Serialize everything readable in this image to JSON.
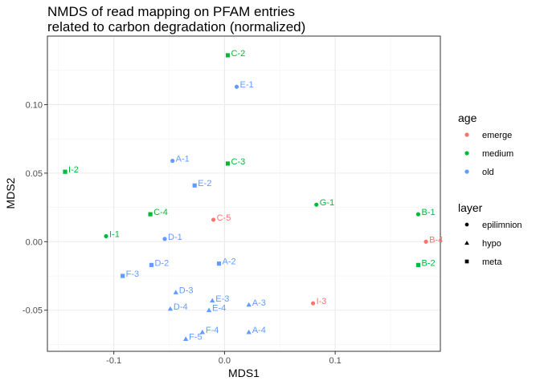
{
  "chart_data": {
    "type": "scatter",
    "title": [
      "NMDS of read mapping on PFAM entries",
      "related to carbon degradation (normalized)"
    ],
    "xlabel": "MDS1",
    "ylabel": "MDS2",
    "xlim": [
      -0.16,
      0.195
    ],
    "ylim": [
      -0.08,
      0.15
    ],
    "xticks": [
      -0.1,
      0.0,
      0.1
    ],
    "xtick_labels": [
      "-0.1",
      "0.0",
      "0.1"
    ],
    "yticks": [
      -0.05,
      0.0,
      0.05,
      0.1
    ],
    "ytick_labels": [
      "-0.05",
      "0.00",
      "0.05",
      "0.10"
    ],
    "grid": true,
    "legend_placement": "right",
    "colors": {
      "emerge": "#f8766d",
      "medium": "#00ba38",
      "old": "#619cff"
    },
    "legends": [
      {
        "title": "age",
        "items": [
          {
            "label": "emerge",
            "color": "#f8766d"
          },
          {
            "label": "medium",
            "color": "#00ba38"
          },
          {
            "label": "old",
            "color": "#619cff"
          }
        ]
      },
      {
        "title": "layer",
        "items": [
          {
            "label": "epilimnion",
            "shape": "circle"
          },
          {
            "label": "hypo",
            "shape": "triangle"
          },
          {
            "label": "meta",
            "shape": "square"
          }
        ]
      }
    ],
    "points": [
      {
        "label": "C-2",
        "x": 0.003,
        "y": 0.136,
        "age": "medium",
        "layer": "meta"
      },
      {
        "label": "E-1",
        "x": 0.011,
        "y": 0.113,
        "age": "old",
        "layer": "epilimnion"
      },
      {
        "label": "A-1",
        "x": -0.047,
        "y": 0.059,
        "age": "old",
        "layer": "epilimnion"
      },
      {
        "label": "C-3",
        "x": 0.003,
        "y": 0.057,
        "age": "medium",
        "layer": "meta"
      },
      {
        "label": "I-2",
        "x": -0.144,
        "y": 0.051,
        "age": "medium",
        "layer": "meta"
      },
      {
        "label": "E-2",
        "x": -0.027,
        "y": 0.041,
        "age": "old",
        "layer": "meta"
      },
      {
        "label": "G-1",
        "x": 0.083,
        "y": 0.027,
        "age": "medium",
        "layer": "epilimnion"
      },
      {
        "label": "C-4",
        "x": -0.067,
        "y": 0.02,
        "age": "medium",
        "layer": "meta"
      },
      {
        "label": "B-1",
        "x": 0.175,
        "y": 0.02,
        "age": "medium",
        "layer": "epilimnion"
      },
      {
        "label": "C-5",
        "x": -0.01,
        "y": 0.016,
        "age": "emerge",
        "layer": "epilimnion"
      },
      {
        "label": "I-1",
        "x": -0.107,
        "y": 0.004,
        "age": "medium",
        "layer": "epilimnion"
      },
      {
        "label": "D-1",
        "x": -0.054,
        "y": 0.002,
        "age": "old",
        "layer": "epilimnion"
      },
      {
        "label": "B-4",
        "x": 0.182,
        "y": 0.0,
        "age": "emerge",
        "layer": "epilimnion"
      },
      {
        "label": "A-2",
        "x": -0.005,
        "y": -0.016,
        "age": "old",
        "layer": "meta"
      },
      {
        "label": "D-2",
        "x": -0.066,
        "y": -0.017,
        "age": "old",
        "layer": "meta"
      },
      {
        "label": "B-2",
        "x": 0.175,
        "y": -0.017,
        "age": "medium",
        "layer": "meta"
      },
      {
        "label": "F-3",
        "x": -0.092,
        "y": -0.025,
        "age": "old",
        "layer": "meta"
      },
      {
        "label": "D-3",
        "x": -0.044,
        "y": -0.037,
        "age": "old",
        "layer": "hypo"
      },
      {
        "label": "E-3",
        "x": -0.011,
        "y": -0.043,
        "age": "old",
        "layer": "hypo"
      },
      {
        "label": "I-3",
        "x": 0.08,
        "y": -0.045,
        "age": "emerge",
        "layer": "epilimnion"
      },
      {
        "label": "A-3",
        "x": 0.022,
        "y": -0.046,
        "age": "old",
        "layer": "hypo"
      },
      {
        "label": "D-4",
        "x": -0.049,
        "y": -0.049,
        "age": "old",
        "layer": "hypo"
      },
      {
        "label": "E-4",
        "x": -0.014,
        "y": -0.05,
        "age": "old",
        "layer": "hypo"
      },
      {
        "label": "F-4",
        "x": -0.02,
        "y": -0.066,
        "age": "old",
        "layer": "hypo"
      },
      {
        "label": "A-4",
        "x": 0.022,
        "y": -0.066,
        "age": "old",
        "layer": "hypo"
      },
      {
        "label": "F-5",
        "x": -0.035,
        "y": -0.071,
        "age": "old",
        "layer": "hypo"
      }
    ]
  }
}
